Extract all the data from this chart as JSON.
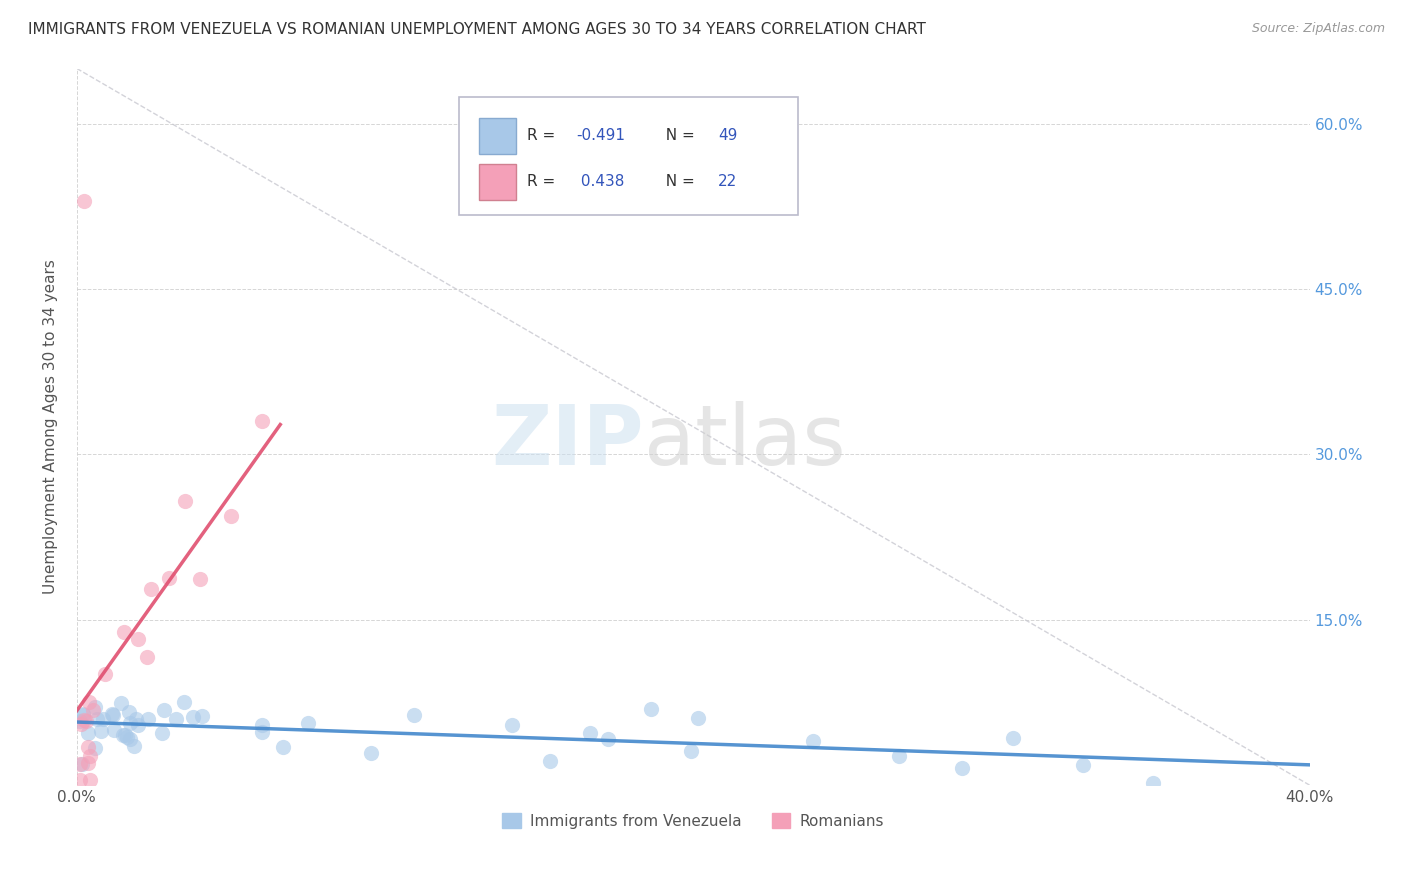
{
  "title": "IMMIGRANTS FROM VENEZUELA VS ROMANIAN UNEMPLOYMENT AMONG AGES 30 TO 34 YEARS CORRELATION CHART",
  "source": "Source: ZipAtlas.com",
  "ylabel": "Unemployment Among Ages 30 to 34 years",
  "xlim": [
    0.0,
    0.4
  ],
  "ylim": [
    0.0,
    0.65
  ],
  "xtick_positions": [
    0.0,
    0.4
  ],
  "xtick_labels": [
    "0.0%",
    "40.0%"
  ],
  "ytick_positions": [
    0.0,
    0.15,
    0.3,
    0.45,
    0.6
  ],
  "ytick_labels_left": [
    "",
    "",
    "",
    "",
    ""
  ],
  "ytick_labels_right": [
    "",
    "15.0%",
    "30.0%",
    "45.0%",
    "60.0%"
  ],
  "color_venezuela": "#a8c8e8",
  "color_romania": "#f4a0b8",
  "trendline_color_venezuela": "#4488cc",
  "trendline_color_romania": "#e05070",
  "diag_line_color": "#c8c8d0",
  "background_color": "#ffffff",
  "grid_color": "#cccccc",
  "title_color": "#333333",
  "r_value_color": "#3355bb",
  "label_color": "#555555",
  "right_axis_color": "#5599dd",
  "legend_r1": "-0.491",
  "legend_n1": "49",
  "legend_r2": "0.438",
  "legend_n2": "22"
}
